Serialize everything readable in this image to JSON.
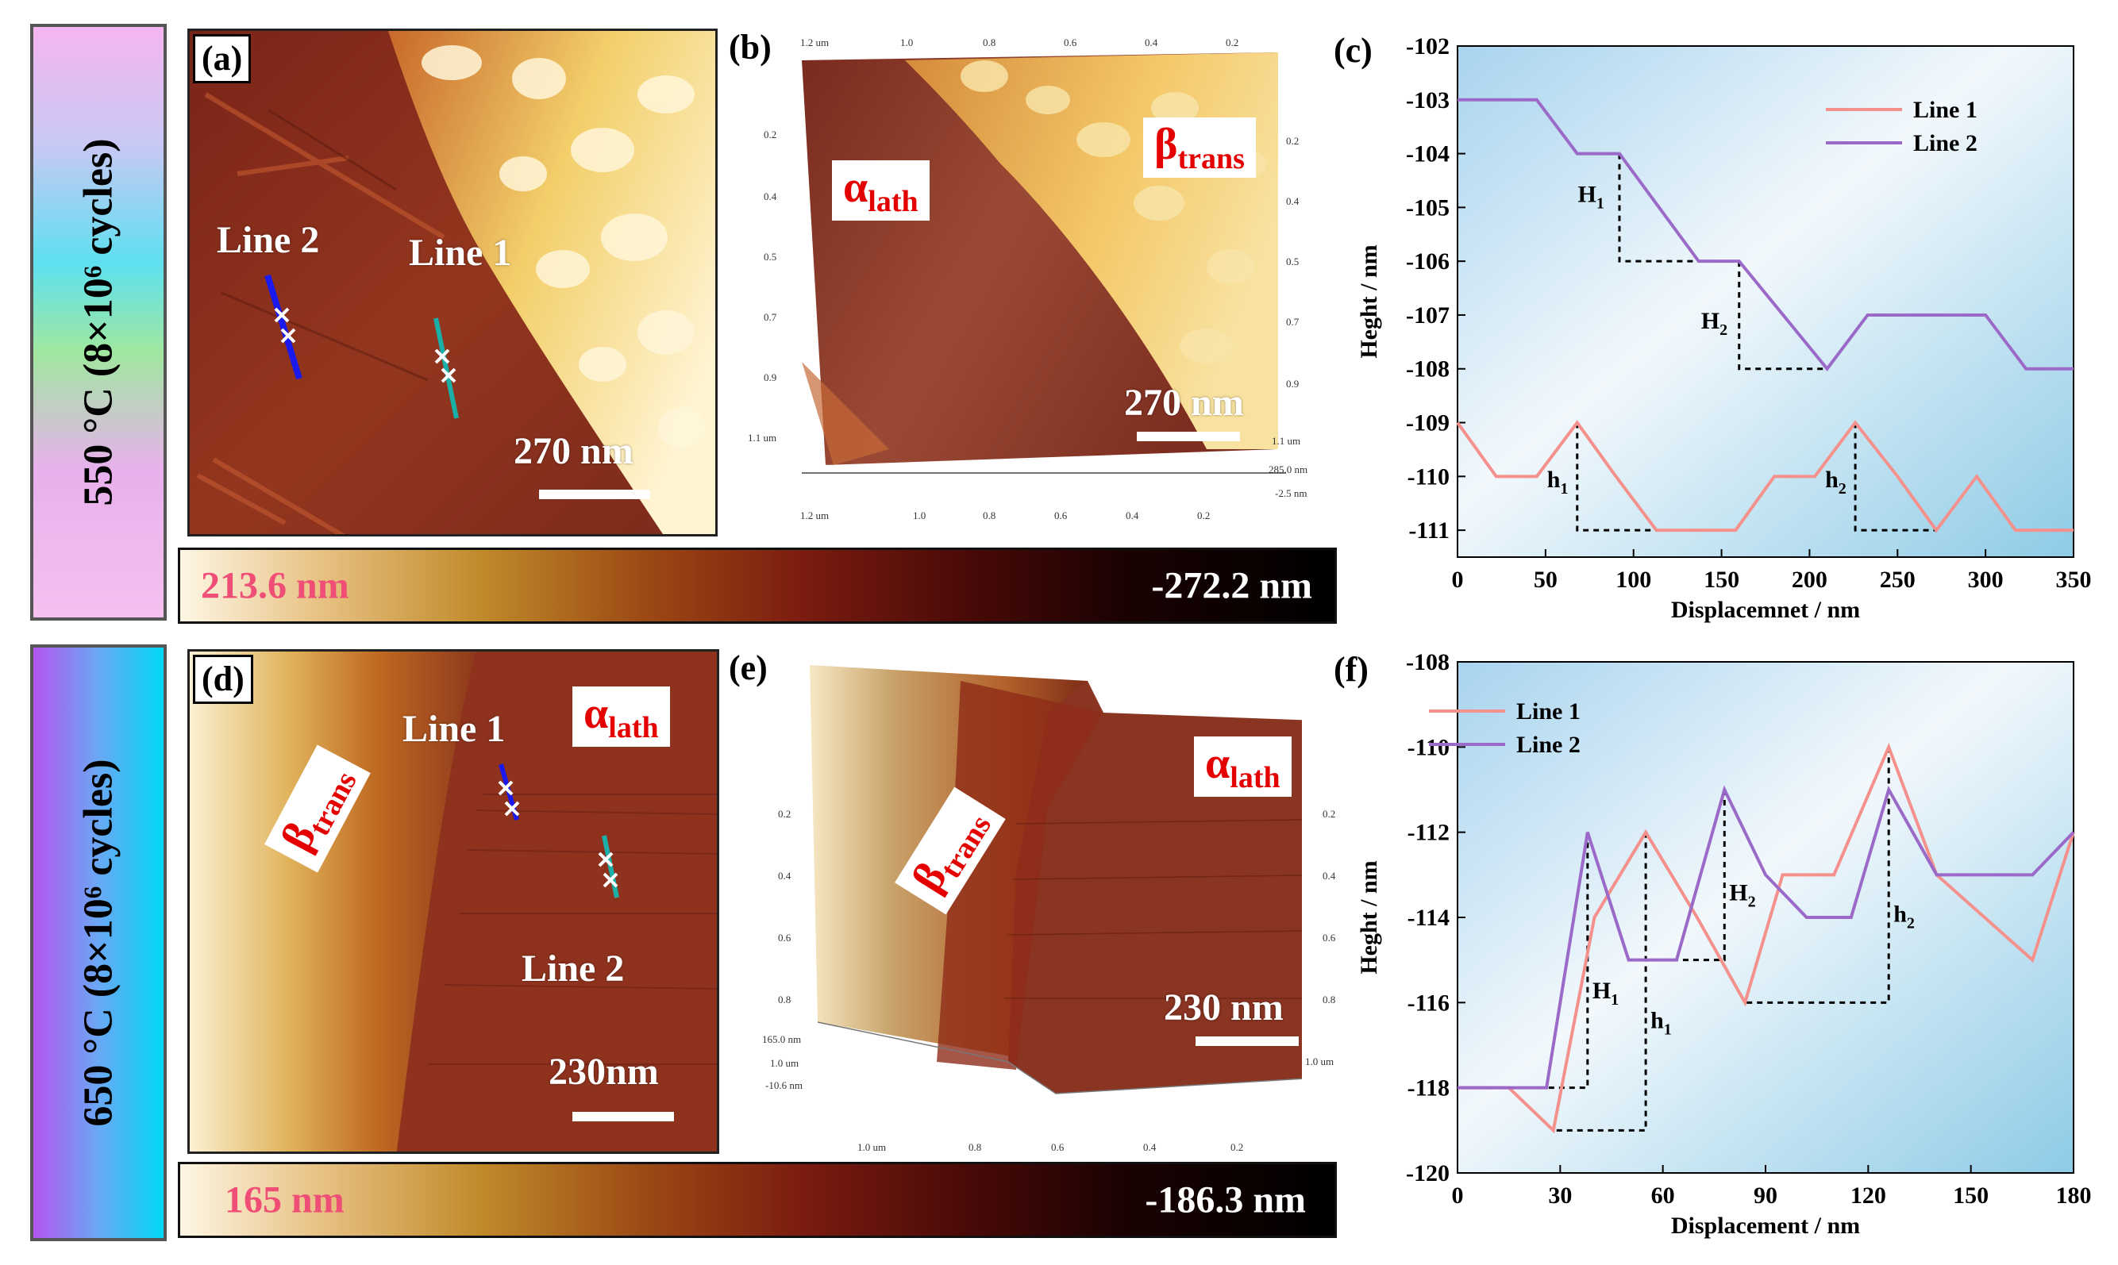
{
  "row_top": {
    "side_label": "550 °C (8×10⁶ cycles)",
    "panel_a": {
      "label": "(a)",
      "line2": "Line 2",
      "line1": "Line 1",
      "scale": "270 nm"
    },
    "panel_b": {
      "label": "(b)",
      "alpha": "α",
      "alpha_sub": "lath",
      "beta": "β",
      "beta_sub": "trans",
      "scale": "270 nm",
      "axis_top": [
        "1.2 um",
        "1.0",
        "0.8",
        "0.6",
        "0.4",
        "0.2"
      ],
      "axis_left": [
        "0.2",
        "0.4",
        "0.5",
        "0.7",
        "0.9",
        "1.1 um"
      ],
      "axis_right": [
        "0.2",
        "0.4",
        "0.5",
        "0.7",
        "0.9",
        "1.1 um",
        "285.0 nm",
        "-2.5 nm"
      ],
      "axis_bottom": [
        "1.2 um",
        "1.0",
        "0.8",
        "0.6",
        "0.4",
        "0.2"
      ]
    },
    "colorbar": {
      "max": "213.6 nm",
      "min": "-272.2 nm"
    }
  },
  "row_bottom": {
    "side_label": "650 °C (8×10⁶ cycles)",
    "panel_d": {
      "label": "(d)",
      "line1": "Line 1",
      "line2": "Line 2",
      "alpha": "α",
      "alpha_sub": "lath",
      "beta": "β",
      "beta_sub": "trans",
      "scale": "230nm"
    },
    "panel_e": {
      "label": "(e)",
      "alpha": "α",
      "alpha_sub": "lath",
      "beta": "β",
      "beta_sub": "trans",
      "scale": "230 nm",
      "axis_left": [
        "0.2",
        "0.4",
        "0.6",
        "0.8",
        "165.0 nm",
        "1.0 um",
        "-10.6 nm"
      ],
      "axis_right": [
        "0.2",
        "0.4",
        "0.6",
        "0.8",
        "1.0 um"
      ],
      "axis_bottom": [
        "1.0 um",
        "0.8",
        "0.6",
        "0.4",
        "0.2"
      ]
    },
    "colorbar": {
      "max": "165 nm",
      "min": "-186.3 nm"
    }
  },
  "chart_data": [
    {
      "panel": "(c)",
      "type": "line",
      "xlabel": "Displacemnet / nm",
      "ylabel": "Heght / nm",
      "xlim": [
        0,
        350
      ],
      "ylim": [
        -111.5,
        -102
      ],
      "xticks": [
        0,
        50,
        100,
        150,
        200,
        250,
        300,
        350
      ],
      "yticks": [
        -102,
        -103,
        -104,
        -105,
        -106,
        -107,
        -108,
        -109,
        -110,
        -111
      ],
      "legend_position": "top-right",
      "series": [
        {
          "name": "Line 1",
          "color": "#f4918c",
          "x": [
            0,
            22,
            45,
            68,
            90,
            113,
            158,
            180,
            203,
            226,
            250,
            272,
            295,
            317,
            350
          ],
          "y": [
            -109,
            -110,
            -110,
            -109,
            -110,
            -111,
            -111,
            -110,
            -110,
            -109,
            -110,
            -111,
            -110,
            -111,
            -111
          ]
        },
        {
          "name": "Line 2",
          "color": "#9b6ac8",
          "x": [
            0,
            45,
            68,
            92,
            137,
            160,
            210,
            233,
            300,
            323,
            350
          ],
          "y": [
            -103,
            -103,
            -104,
            -104,
            -106,
            -106,
            -108,
            -107,
            -107,
            -108,
            -108
          ]
        }
      ],
      "annotations": [
        {
          "text": "H",
          "sub": "1"
        },
        {
          "text": "H",
          "sub": "2"
        },
        {
          "text": "h",
          "sub": "1"
        },
        {
          "text": "h",
          "sub": "2"
        }
      ]
    },
    {
      "panel": "(f)",
      "type": "line",
      "xlabel": "Displacement / nm",
      "ylabel": "Heght / nm",
      "xlim": [
        0,
        180
      ],
      "ylim": [
        -120,
        -108
      ],
      "xticks": [
        0,
        30,
        60,
        90,
        120,
        150,
        180
      ],
      "yticks": [
        -108,
        -110,
        -112,
        -114,
        -116,
        -118,
        -120
      ],
      "legend_position": "top-left",
      "series": [
        {
          "name": "Line 1",
          "color": "#f4918c",
          "x": [
            0,
            15,
            28,
            40,
            55,
            70,
            84,
            95,
            110,
            126,
            140,
            168,
            180
          ],
          "y": [
            -118,
            -118,
            -119,
            -114,
            -112,
            -114,
            -116,
            -113,
            -113,
            -110,
            -113,
            -115,
            -112
          ]
        },
        {
          "name": "Line 2",
          "color": "#9b6ac8",
          "x": [
            0,
            26,
            38,
            50,
            64,
            78,
            90,
            102,
            115,
            126,
            140,
            168,
            180
          ],
          "y": [
            -118,
            -118,
            -112,
            -115,
            -115,
            -111,
            -113,
            -114,
            -114,
            -111,
            -113,
            -113,
            -112
          ]
        }
      ],
      "annotations": [
        {
          "text": "H",
          "sub": "1"
        },
        {
          "text": "H",
          "sub": "2"
        },
        {
          "text": "h",
          "sub": "1"
        },
        {
          "text": "h",
          "sub": "2"
        }
      ]
    }
  ]
}
